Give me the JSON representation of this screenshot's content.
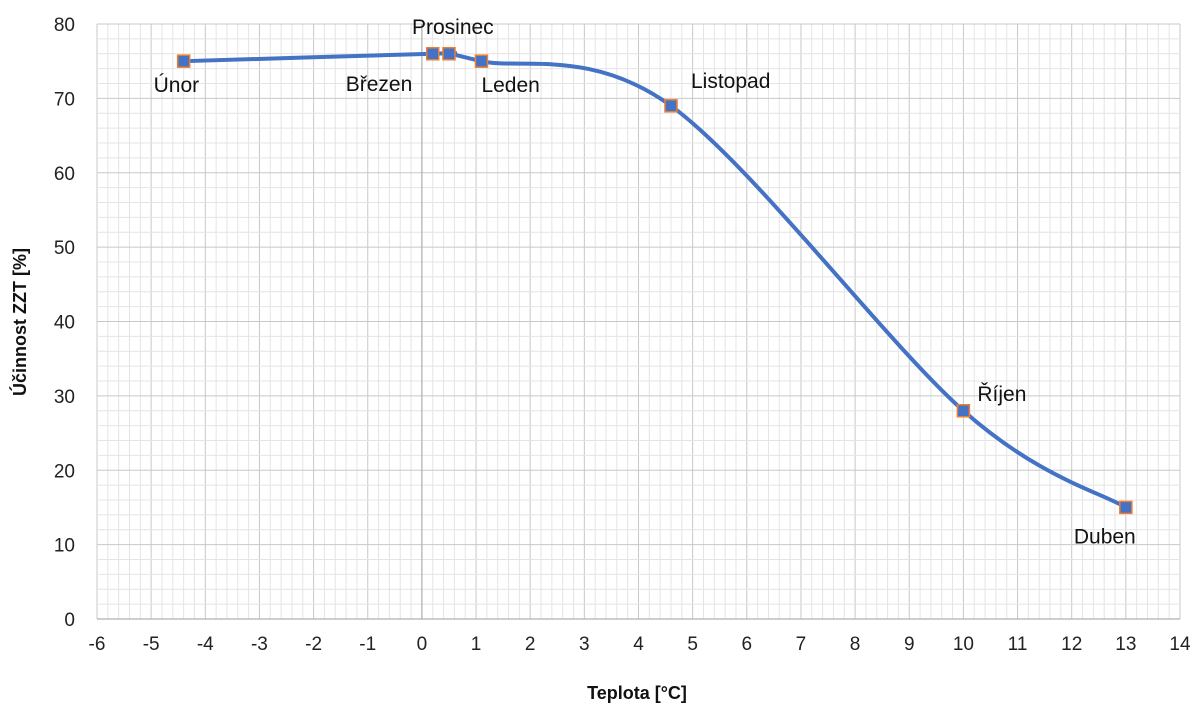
{
  "chart_data": {
    "type": "scatter",
    "xlabel": "Teplota [°C]",
    "ylabel": "Účinnost ZZT [%]",
    "xlim": [
      -6,
      14
    ],
    "ylim": [
      0,
      80
    ],
    "x_ticks": [
      "-6",
      "-5",
      "-4",
      "-3",
      "-2",
      "-1",
      "0",
      "1",
      "2",
      "3",
      "4",
      "5",
      "6",
      "7",
      "8",
      "9",
      "10",
      "11",
      "12",
      "13",
      "14"
    ],
    "y_ticks": [
      "0",
      "10",
      "20",
      "30",
      "40",
      "50",
      "60",
      "70",
      "80"
    ],
    "grid": true,
    "smooth_line": true,
    "series": [
      {
        "color": "#4472c4",
        "marker_color": "#4472c4",
        "marker_edge": "#ed7d31",
        "points": [
          {
            "x": -4.4,
            "y": 75,
            "label": "Únor"
          },
          {
            "x": 0.2,
            "y": 76,
            "label": "Březen"
          },
          {
            "x": 0.5,
            "y": 76,
            "label": "Prosinec"
          },
          {
            "x": 1.1,
            "y": 75,
            "label": "Leden"
          },
          {
            "x": 4.6,
            "y": 69,
            "label": "Listopad"
          },
          {
            "x": 10.0,
            "y": 28,
            "label": "Říjen"
          },
          {
            "x": 13.0,
            "y": 15,
            "label": "Duben"
          }
        ]
      }
    ]
  }
}
